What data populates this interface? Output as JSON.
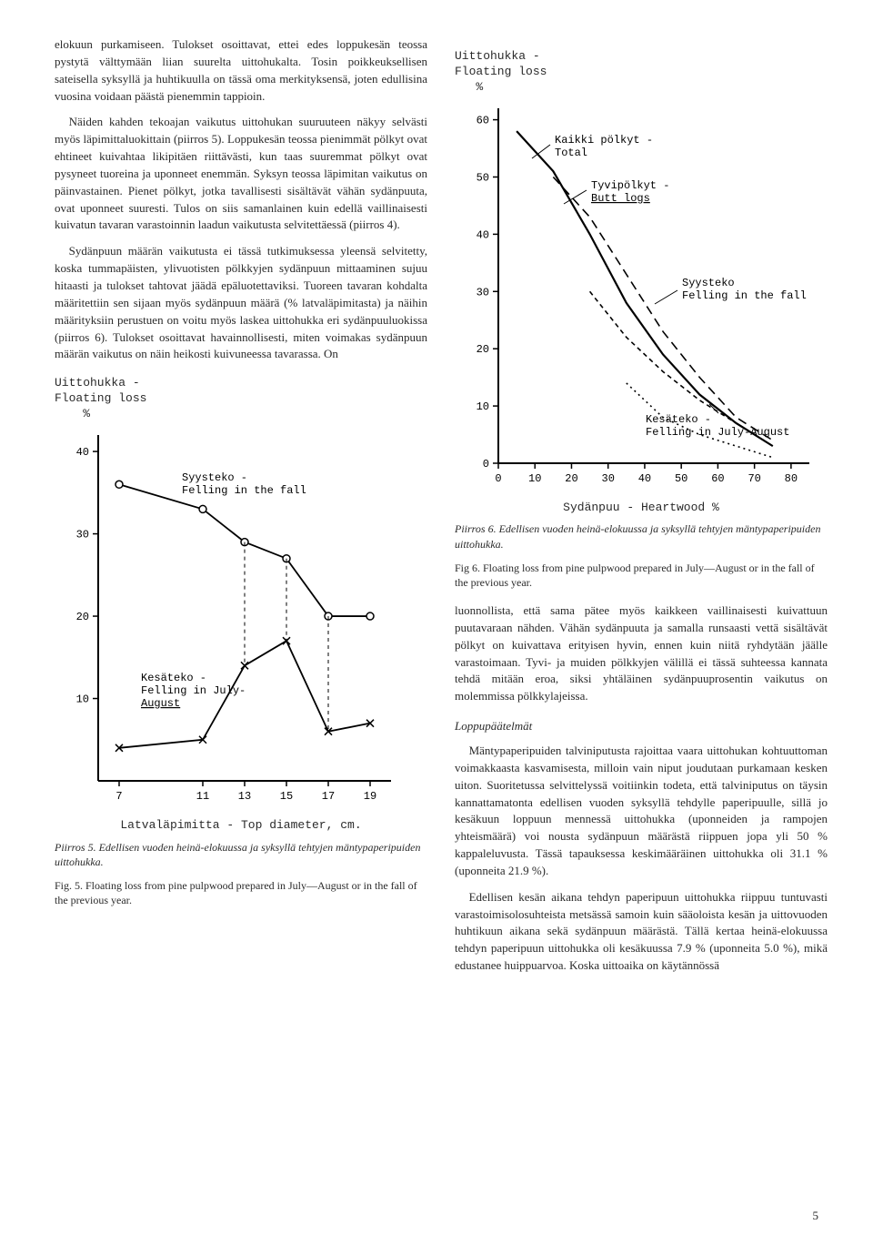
{
  "left_col": {
    "para1": "elokuun purkamiseen. Tulokset osoittavat, ettei edes loppukesän teossa pystytä välttymään liian suurelta uittohukalta. Tosin poikkeuksellisen sateisella syksyllä ja huhtikuulla on tässä oma merkityksensä, joten edullisina vuosina voidaan päästä pienemmin tappioin.",
    "para2": "Näiden kahden tekoajan vaikutus uittohukan suuruuteen näkyy selvästi myös läpimittaluokittain (piirros 5). Loppukesän teossa pienimmät pölkyt ovat ehtineet kuivahtaa likipitäen riittävästi, kun taas suuremmat pölkyt ovat pysyneet tuoreina ja uponneet enemmän. Syksyn teossa läpimitan vaikutus on päinvastainen. Pienet pölkyt, jotka tavallisesti sisältävät vähän sydänpuuta, ovat uponneet suuresti. Tulos on siis samanlainen kuin edellä vaillinaisesti kuivatun tavaran varastoinnin laadun vaikutusta selvitettäessä (piirros 4).",
    "para3": "Sydänpuun määrän vaikutusta ei tässä tutkimuksessa yleensä selvitetty, koska tummapäisten, ylivuotisten pölkkyjen sydänpuun mittaaminen sujuu hitaasti ja tulokset tahtovat jäädä epäluotettaviksi. Tuoreen tavaran kohdalta määritettiin sen sijaan myös sydänpuun määrä (% latvaläpimitasta) ja näihin määrityksiin perustuen on voitu myös laskea uittohukka eri sydänpuuluokissa (piirros 6). Tulokset osoittavat havainnollisesti, miten voimakas sydänpuun määrän vaikutus on näin heikosti kuivuneessa tavarassa. On"
  },
  "right_col": {
    "para1": "luonnollista, että sama pätee myös kaikkeen vaillinaisesti kuivattuun puutavaraan nähden. Vähän sydänpuuta ja samalla runsaasti vettä sisältävät pölkyt on kuivattava erityisen hyvin, ennen kuin niitä ryhdytään jäälle varastoimaan. Tyvi- ja muiden pölkkyjen välillä ei tässä suhteessa kannata tehdä mitään eroa, siksi yhtäläinen sydänpuuprosentin vaikutus on molemmissa pölkkylajeissa.",
    "heading": "Loppupäätelmät",
    "para2": "Mäntypaperipuiden talviniputusta rajoittaa vaara uittohukan kohtuuttoman voimakkaasta kasvamisesta, milloin vain niput joudutaan purkamaan kesken uiton. Suoritetussa selvittelyssä voitiinkin todeta, että talviniputus on täysin kannattamatonta edellisen vuoden syksyllä tehdylle paperipuulle, sillä jo kesäkuun loppuun mennessä uittohukka (uponneiden ja rampojen yhteismäärä) voi nousta sydänpuun määrästä riippuen jopa yli 50 % kappaleluvusta. Tässä tapauksessa keskimääräinen uittohukka oli 31.1 % (uponneita 21.9 %).",
    "para3": "Edellisen kesän aikana tehdyn paperipuun uittohukka riippuu tuntuvasti varastoimisolosuhteista metsässä samoin kuin sääoloista kesän ja uittovuoden huhtikuun aikana sekä sydänpuun määrästä. Tällä kertaa heinä-elokuussa tehdyn paperipuun uittohukka oli kesäkuussa 7.9 % (uponneita 5.0 %), mikä edustanee huippuarvoa. Koska uittoaika on käytännössä"
  },
  "chart5": {
    "type": "line",
    "title_line1": "Uittohukka -",
    "title_line2": "Floating loss",
    "ylabel_symbol": "%",
    "xlabel": "Latvaläpimitta - Top diameter, cm.",
    "xlim": [
      6,
      20
    ],
    "ylim": [
      0,
      42
    ],
    "xticks": [
      7,
      11,
      13,
      15,
      17,
      19
    ],
    "yticks": [
      10,
      20,
      30,
      40
    ],
    "series": {
      "syysteko": {
        "label_line1": "Syysteko -",
        "label_line2": "Felling in the fall",
        "x": [
          7,
          11,
          13,
          15,
          17,
          19
        ],
        "y": [
          36,
          33,
          29,
          27,
          20,
          20
        ],
        "marker": "circle-open",
        "line_color": "#000000",
        "line_width": 1.8
      },
      "kesateko": {
        "label_line1": "Kesäteko -",
        "label_line2": "Felling in July-",
        "label_line3": "August",
        "x": [
          7,
          11,
          13,
          15,
          17,
          19
        ],
        "y": [
          4,
          5,
          14,
          17,
          6,
          7
        ],
        "marker": "x",
        "line_color": "#000000",
        "line_width": 1.8
      }
    },
    "caption_fi": "Piirros 5. Edellisen vuoden heinä-elokuussa ja syksyllä tehtyjen mäntypaperipuiden uittohukka.",
    "caption_en": "Fig. 5. Floating loss from pine pulpwood prepared in July—August or in the fall of the previous year.",
    "axis_color": "#000000",
    "fontsize": 12
  },
  "chart6": {
    "type": "line",
    "title_line1": "Uittohukka -",
    "title_line2": "Floating loss",
    "ylabel_symbol": "%",
    "xlabel": "Sydänpuu - Heartwood %",
    "xlim": [
      0,
      85
    ],
    "ylim": [
      0,
      62
    ],
    "xticks": [
      0,
      10,
      20,
      30,
      40,
      50,
      60,
      70,
      80
    ],
    "yticks": [
      0,
      10,
      20,
      30,
      40,
      50,
      60
    ],
    "series": {
      "kaikki_total": {
        "label_line1": "Kaikki pölkyt -",
        "label_line2": "Total",
        "x": [
          5,
          15,
          25,
          35,
          45,
          55,
          65,
          75
        ],
        "y": [
          58,
          51,
          40,
          28,
          19,
          12,
          7,
          3
        ],
        "line_style": "solid",
        "line_color": "#000000",
        "line_width": 2.2
      },
      "tyvipolkyt_butt": {
        "label_line1": "Tyvipölkyt -",
        "label_line2": "Butt logs",
        "x": [
          15,
          25,
          35,
          45,
          55,
          65,
          75
        ],
        "y": [
          50,
          43,
          33,
          23,
          15,
          8,
          4
        ],
        "line_style": "dash-long",
        "line_color": "#000000",
        "line_width": 1.6
      },
      "syysteko_fall": {
        "label_line1": "Syysteko",
        "label_line2": "Felling in the fall",
        "x": [
          25,
          35,
          45,
          55,
          65,
          75
        ],
        "y": [
          30,
          22,
          16,
          11,
          7,
          3
        ],
        "line_style": "dash-short",
        "line_color": "#000000",
        "line_width": 1.6
      },
      "kesateko_summer": {
        "label_line1": "Kesäteko -",
        "label_line2": "Felling in July-August",
        "x": [
          35,
          45,
          55,
          65,
          75
        ],
        "y": [
          14,
          8,
          5,
          3,
          1
        ],
        "line_style": "dot",
        "line_color": "#000000",
        "line_width": 1.6
      }
    },
    "caption_fi": "Piirros 6. Edellisen vuoden heinä-elokuussa ja syksyllä tehtyjen mäntypaperipuiden uittohukka.",
    "caption_en": "Fig 6. Floating loss from pine pulpwood prepared in July—August or in the fall of the previous year.",
    "axis_color": "#000000",
    "fontsize": 12
  },
  "page_number": "5"
}
